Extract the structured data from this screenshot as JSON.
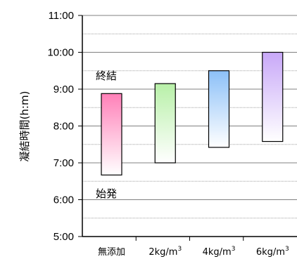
{
  "chart_data": {
    "type": "floating-bar",
    "ylabel": "凝結時間(h:m)",
    "ylim": [
      5,
      11
    ],
    "y_ticks": [
      "5:00",
      "6:00",
      "7:00",
      "8:00",
      "9:00",
      "10:00",
      "11:00"
    ],
    "grid": "horizontal dotted every 0:30",
    "categories": [
      "無添加",
      "2kg/m3",
      "4kg/m3",
      "6kg/m3"
    ],
    "series": [
      {
        "name": "始発",
        "values": [
          6.67,
          7.0,
          7.42,
          7.58
        ]
      },
      {
        "name": "終結",
        "values": [
          8.88,
          9.15,
          9.5,
          10.0
        ]
      }
    ],
    "annotations": [
      {
        "text": "終結",
        "near": "top of first bar"
      },
      {
        "text": "始発",
        "near": "bottom of first bar"
      }
    ],
    "colors": [
      "#ff80b8",
      "#b8f0a8",
      "#8cc0f8",
      "#c8a8f8"
    ]
  }
}
